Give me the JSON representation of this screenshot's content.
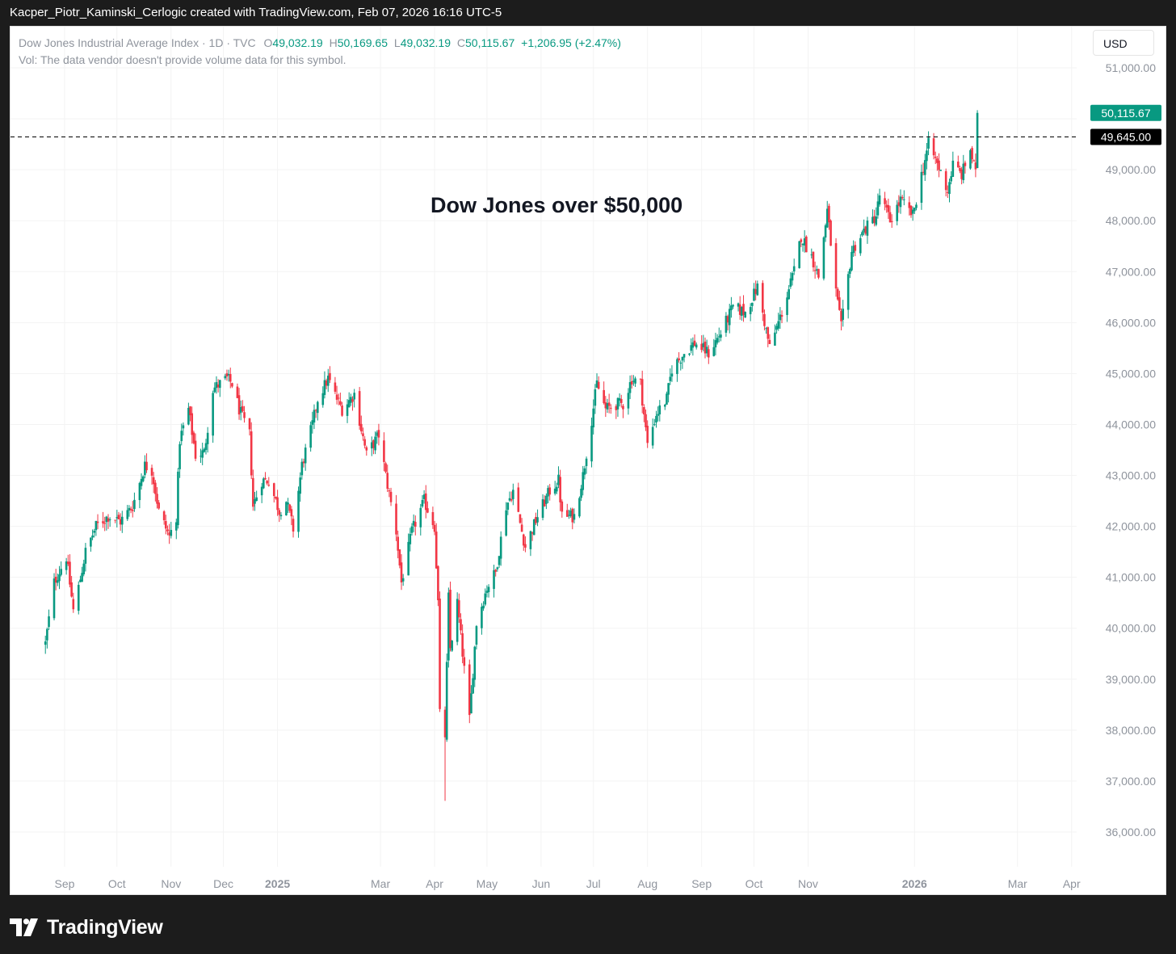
{
  "header": {
    "caption": "Kacper_Piotr_Kaminski_Cerlogic created with TradingView.com, Feb 07, 2026 16:16 UTC-5"
  },
  "legend": {
    "symbol": "Dow Jones Industrial Average Index · 1D · TVC",
    "o_label": "O",
    "o_value": "49,032.19",
    "h_label": "H",
    "h_value": "50,169.65",
    "l_label": "L",
    "l_value": "49,032.19",
    "c_label": "C",
    "c_value": "50,115.67",
    "change": "+1,206.95 (+2.47%)",
    "volume_note": "Vol: The data vendor doesn't provide volume data for this symbol."
  },
  "currency_button": "USD",
  "annotation": "Dow Jones over $50,000",
  "footer": {
    "brand": "TradingView"
  },
  "colors": {
    "up": "#089981",
    "down": "#f23645",
    "grid": "#f3f3f3",
    "axis_text": "#8f949d",
    "last_price_bg": "#089981",
    "hline_bg": "#000000"
  },
  "chart_data": {
    "type": "candlestick",
    "title": "",
    "ylim": [
      35500,
      51400
    ],
    "y_ticks": [
      36000,
      37000,
      38000,
      39000,
      40000,
      41000,
      42000,
      43000,
      44000,
      45000,
      46000,
      47000,
      48000,
      49000,
      50000,
      51000
    ],
    "y_tick_labels": [
      "36,000.00",
      "37,000.00",
      "38,000.00",
      "39,000.00",
      "40,000.00",
      "41,000.00",
      "42,000.00",
      "43,000.00",
      "44,000.00",
      "45,000.00",
      "46,000.00",
      "47,000.00",
      "48,000.00",
      "49,000.00",
      "50,000.00",
      "51,000.00"
    ],
    "x_ticks": [
      {
        "label": "Sep",
        "date": "2024-09-01",
        "bold": false
      },
      {
        "label": "Oct",
        "date": "2024-10-01",
        "bold": false
      },
      {
        "label": "Nov",
        "date": "2024-11-01",
        "bold": false
      },
      {
        "label": "Dec",
        "date": "2024-12-01",
        "bold": false
      },
      {
        "label": "2025",
        "date": "2025-01-01",
        "bold": true
      },
      {
        "label": "Mar",
        "date": "2025-03-01",
        "bold": false
      },
      {
        "label": "Apr",
        "date": "2025-04-01",
        "bold": false
      },
      {
        "label": "May",
        "date": "2025-05-01",
        "bold": false
      },
      {
        "label": "Jun",
        "date": "2025-06-01",
        "bold": false
      },
      {
        "label": "Jul",
        "date": "2025-07-01",
        "bold": false
      },
      {
        "label": "Aug",
        "date": "2025-08-01",
        "bold": false
      },
      {
        "label": "Sep",
        "date": "2025-09-01",
        "bold": false
      },
      {
        "label": "Oct",
        "date": "2025-10-01",
        "bold": false
      },
      {
        "label": "Nov",
        "date": "2025-11-01",
        "bold": false
      },
      {
        "label": "2026",
        "date": "2026-01-01",
        "bold": true
      },
      {
        "label": "Mar",
        "date": "2026-03-01",
        "bold": false
      },
      {
        "label": "Apr",
        "date": "2026-04-01",
        "bold": false
      }
    ],
    "last_price": 50115.67,
    "last_price_label": "50,115.67",
    "horizontal_line": 49645.0,
    "horizontal_line_label": "49,645.00",
    "grid": true,
    "close_path": [
      [
        "2024-08-21",
        39700
      ],
      [
        "2024-08-26",
        40900
      ],
      [
        "2024-09-02",
        41400
      ],
      [
        "2024-09-06",
        40350
      ],
      [
        "2024-09-09",
        40800
      ],
      [
        "2024-09-13",
        41500
      ],
      [
        "2024-09-19",
        42000
      ],
      [
        "2024-09-26",
        42200
      ],
      [
        "2024-10-03",
        42100
      ],
      [
        "2024-10-10",
        42400
      ],
      [
        "2024-10-17",
        43200
      ],
      [
        "2024-10-21",
        43100
      ],
      [
        "2024-10-25",
        42300
      ],
      [
        "2024-10-31",
        41800
      ],
      [
        "2024-11-04",
        42200
      ],
      [
        "2024-11-06",
        43700
      ],
      [
        "2024-11-11",
        44300
      ],
      [
        "2024-11-15",
        43400
      ],
      [
        "2024-11-20",
        43450
      ],
      [
        "2024-11-25",
        44700
      ],
      [
        "2024-12-03",
        44900
      ],
      [
        "2024-12-06",
        44800
      ],
      [
        "2024-12-10",
        44300
      ],
      [
        "2024-12-16",
        43800
      ],
      [
        "2024-12-18",
        42400
      ],
      [
        "2024-12-23",
        42900
      ],
      [
        "2024-12-27",
        42900
      ],
      [
        "2025-01-02",
        42300
      ],
      [
        "2025-01-06",
        42500
      ],
      [
        "2025-01-10",
        41950
      ],
      [
        "2025-01-15",
        43200
      ],
      [
        "2025-01-21",
        44000
      ],
      [
        "2025-01-24",
        44500
      ],
      [
        "2025-01-30",
        44900
      ],
      [
        "2025-02-04",
        44500
      ],
      [
        "2025-02-07",
        44300
      ],
      [
        "2025-02-14",
        44600
      ],
      [
        "2025-02-21",
        43400
      ],
      [
        "2025-02-28",
        43800
      ],
      [
        "2025-03-04",
        43000
      ],
      [
        "2025-03-10",
        41900
      ],
      [
        "2025-03-13",
        40900
      ],
      [
        "2025-03-19",
        41900
      ],
      [
        "2025-03-26",
        42500
      ],
      [
        "2025-04-01",
        42000
      ],
      [
        "2025-04-03",
        40500
      ],
      [
        "2025-04-04",
        38300
      ],
      [
        "2025-04-07",
        37900
      ],
      [
        "2025-04-09",
        40600
      ],
      [
        "2025-04-10",
        39600
      ],
      [
        "2025-04-14",
        40500
      ],
      [
        "2025-04-21",
        38200
      ],
      [
        "2025-04-25",
        40100
      ],
      [
        "2025-05-01",
        40800
      ],
      [
        "2025-05-06",
        41100
      ],
      [
        "2025-05-12",
        42400
      ],
      [
        "2025-05-16",
        42700
      ],
      [
        "2025-05-21",
        41900
      ],
      [
        "2025-05-23",
        41600
      ],
      [
        "2025-05-30",
        42200
      ],
      [
        "2025-06-06",
        42700
      ],
      [
        "2025-06-11",
        42900
      ],
      [
        "2025-06-13",
        42200
      ],
      [
        "2025-06-20",
        42200
      ],
      [
        "2025-06-25",
        43000
      ],
      [
        "2025-06-30",
        44100
      ],
      [
        "2025-07-03",
        44800
      ],
      [
        "2025-07-08",
        44300
      ],
      [
        "2025-07-14",
        44400
      ],
      [
        "2025-07-18",
        44400
      ],
      [
        "2025-07-23",
        44900
      ],
      [
        "2025-07-28",
        44800
      ],
      [
        "2025-08-01",
        43600
      ],
      [
        "2025-08-06",
        44200
      ],
      [
        "2025-08-12",
        44500
      ],
      [
        "2025-08-15",
        45100
      ],
      [
        "2025-08-22",
        45400
      ],
      [
        "2025-08-28",
        45600
      ],
      [
        "2025-09-05",
        45400
      ],
      [
        "2025-09-12",
        45800
      ],
      [
        "2025-09-19",
        46300
      ],
      [
        "2025-09-26",
        46200
      ],
      [
        "2025-10-03",
        46700
      ],
      [
        "2025-10-10",
        45500
      ],
      [
        "2025-10-17",
        46200
      ],
      [
        "2025-10-24",
        47000
      ],
      [
        "2025-10-28",
        47700
      ],
      [
        "2025-11-03",
        47300
      ],
      [
        "2025-11-07",
        46900
      ],
      [
        "2025-11-12",
        48200
      ],
      [
        "2025-11-17",
        46600
      ],
      [
        "2025-11-20",
        45900
      ],
      [
        "2025-11-26",
        47400
      ],
      [
        "2025-12-03",
        47800
      ],
      [
        "2025-12-10",
        48100
      ],
      [
        "2025-12-12",
        48500
      ],
      [
        "2025-12-18",
        48000
      ],
      [
        "2025-12-24",
        48400
      ],
      [
        "2025-12-31",
        48100
      ],
      [
        "2026-01-05",
        48900
      ],
      [
        "2026-01-09",
        49500
      ],
      [
        "2026-01-13",
        49200
      ],
      [
        "2026-01-20",
        48600
      ],
      [
        "2026-01-23",
        49100
      ],
      [
        "2026-01-28",
        48900
      ],
      [
        "2026-02-02",
        49400
      ],
      [
        "2026-02-05",
        48900
      ],
      [
        "2026-02-06",
        50115.67
      ]
    ]
  }
}
